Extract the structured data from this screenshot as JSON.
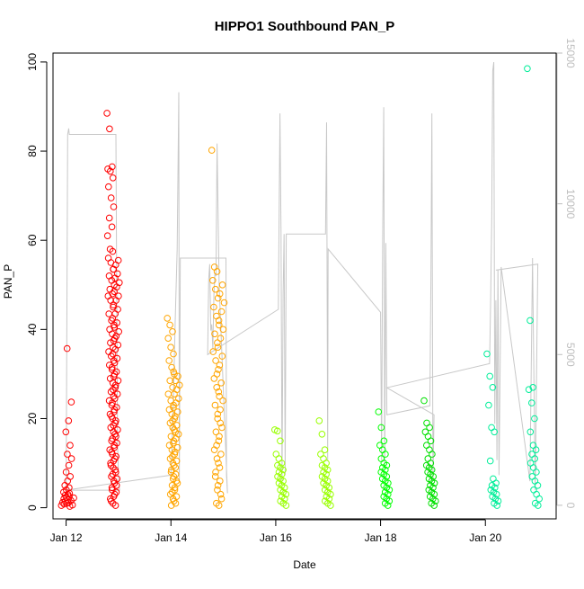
{
  "chart_data": {
    "type": "scatter",
    "title": "HIPPO1 Southbound PAN_P",
    "xlabel": "Date",
    "ylabel": "PAN_P",
    "x_ticks": [
      "Jan 12",
      "Jan 14",
      "Jan 16",
      "Jan 18",
      "Jan 20"
    ],
    "y_ticks": [
      "0",
      "20",
      "40",
      "60",
      "80",
      "100"
    ],
    "y2_ticks": [
      "0",
      "5000",
      "10000",
      "15000"
    ],
    "xlim": [
      11.75,
      21.35
    ],
    "ylim": [
      -2.5,
      102
    ],
    "y2lim": [
      -450,
      15000
    ],
    "grid": false,
    "y2_line_color": "#c8c8c8",
    "flights": [
      {
        "day": 12.03,
        "color": "#ff0000",
        "values": [
          0.5,
          0.8,
          1.0,
          1.2,
          1.5,
          1.8,
          2.0,
          2.3,
          2.5,
          2.8,
          3.0,
          3.5,
          4.0,
          4.5,
          5.0,
          6.0,
          7.0,
          8.0,
          9.5,
          11.0,
          12.0,
          14.0,
          17.0,
          19.5,
          23.7,
          35.7,
          0.3,
          0.6,
          1.1,
          1.6,
          2.2,
          3.2
        ]
      },
      {
        "day": 12.9,
        "color": "#ff0000",
        "values": [
          88.5,
          85.0,
          76.5,
          76.0,
          75.5,
          74.0,
          72.0,
          69.5,
          67.5,
          65.0,
          63.0,
          61.0,
          58.0,
          57.5,
          56.0,
          55.0,
          53.5,
          52.0,
          51.0,
          50.0,
          49.0,
          48.0,
          47.5,
          46.5,
          45.0,
          43.5,
          42.0,
          41.0,
          40.0,
          39.0,
          38.0,
          37.0,
          36.0,
          35.0,
          34.0,
          33.0,
          32.0,
          31.0,
          30.0,
          29.0,
          28.0,
          27.0,
          26.0,
          25.0,
          24.0,
          23.0,
          22.0,
          21.0,
          20.0,
          19.0,
          18.0,
          17.0,
          16.0,
          15.0,
          14.0,
          13.0,
          12.0,
          11.0,
          10.0,
          9.0,
          8.0,
          7.0,
          6.0,
          5.0,
          4.0,
          3.0,
          2.0,
          1.0,
          0.5,
          1.5,
          2.5,
          3.5,
          4.5,
          5.5,
          6.5,
          7.5,
          8.5,
          9.5,
          10.5,
          11.5,
          12.5,
          13.5,
          14.5,
          15.5,
          16.5,
          17.5,
          18.5,
          19.5,
          20.5,
          21.5,
          22.5,
          23.5,
          24.5,
          25.5,
          26.5,
          27.5,
          28.5,
          29.5,
          30.5,
          31.5,
          32.5,
          33.5,
          34.5,
          35.5,
          36.5,
          37.5,
          38.5,
          39.5,
          40.5,
          41.5,
          42.5,
          43.5,
          44.5,
          45.5,
          46.5,
          47.5,
          48.5,
          49.5,
          50.5,
          51.5,
          52.5,
          53.5,
          54.5,
          55.5
        ]
      },
      {
        "day": 14.05,
        "color": "#ffa500",
        "values": [
          42.5,
          41.0,
          39.5,
          38.0,
          36.0,
          34.5,
          33.0,
          31.5,
          30.0,
          28.5,
          27.0,
          25.5,
          24.0,
          23.0,
          22.0,
          21.0,
          20.0,
          19.0,
          18.0,
          17.0,
          16.0,
          15.0,
          14.0,
          13.0,
          12.0,
          11.0,
          10.0,
          9.0,
          8.0,
          7.0,
          6.0,
          5.0,
          4.0,
          3.0,
          2.0,
          1.0,
          0.5,
          1.5,
          2.5,
          3.5,
          4.5,
          5.5,
          6.5,
          7.5,
          8.5,
          9.5,
          10.5,
          11.5,
          12.5,
          13.5,
          14.5,
          15.5,
          16.5,
          17.5,
          18.5,
          19.5,
          20.5,
          21.5,
          22.5,
          23.5,
          24.5,
          25.5,
          26.5,
          27.5,
          28.5,
          29.5,
          30.5
        ]
      },
      {
        "day": 14.9,
        "color": "#ffa500",
        "values": [
          80.2,
          54.0,
          53.0,
          51.0,
          49.0,
          47.0,
          45.0,
          43.0,
          41.0,
          39.0,
          37.0,
          35.0,
          33.0,
          31.0,
          29.0,
          27.0,
          25.0,
          23.0,
          21.0,
          19.0,
          17.0,
          15.0,
          13.0,
          11.0,
          9.0,
          7.0,
          5.0,
          3.0,
          1.0,
          0.5,
          2.0,
          4.0,
          6.0,
          8.0,
          10.0,
          12.0,
          14.0,
          16.0,
          18.0,
          20.0,
          22.0,
          24.0,
          26.0,
          28.0,
          30.0,
          32.0,
          34.0,
          36.0,
          38.0,
          40.0,
          42.0,
          44.0,
          46.0,
          48.0,
          50.0
        ]
      },
      {
        "day": 16.1,
        "color": "#99ff00",
        "values": [
          17.5,
          17.2,
          15.0,
          12.0,
          11.0,
          10.0,
          9.5,
          9.0,
          8.5,
          8.0,
          7.5,
          7.0,
          6.5,
          6.0,
          5.5,
          5.0,
          4.5,
          4.0,
          3.5,
          3.0,
          2.5,
          2.0,
          1.5,
          1.0,
          0.5
        ]
      },
      {
        "day": 16.95,
        "color": "#99ff00",
        "values": [
          19.5,
          16.5,
          13.0,
          12.0,
          11.0,
          10.0,
          9.5,
          9.0,
          8.5,
          8.0,
          7.5,
          7.0,
          6.5,
          6.0,
          5.5,
          5.0,
          4.5,
          4.0,
          3.5,
          3.0,
          2.5,
          2.0,
          1.5,
          1.0,
          0.5
        ]
      },
      {
        "day": 18.08,
        "color": "#00ff00",
        "values": [
          21.5,
          18.0,
          15.0,
          14.0,
          13.0,
          12.0,
          11.0,
          10.0,
          9.5,
          9.0,
          8.5,
          8.0,
          7.5,
          7.0,
          6.5,
          6.0,
          5.5,
          5.0,
          4.5,
          4.0,
          3.5,
          3.0,
          2.5,
          2.0,
          1.5,
          1.0,
          0.5
        ]
      },
      {
        "day": 18.95,
        "color": "#00e000",
        "values": [
          24.0,
          19.0,
          18.0,
          17.0,
          16.0,
          15.0,
          14.0,
          13.0,
          12.0,
          11.0,
          10.0,
          9.5,
          9.0,
          8.5,
          8.0,
          7.5,
          7.0,
          6.5,
          6.0,
          5.5,
          5.0,
          4.5,
          4.0,
          3.5,
          3.0,
          2.5,
          2.0,
          1.5,
          1.0,
          0.5
        ]
      },
      {
        "day": 20.15,
        "color": "#00ee99",
        "values": [
          34.5,
          29.5,
          27.0,
          23.0,
          18.0,
          17.0,
          10.5,
          6.5,
          5.5,
          5.0,
          4.5,
          4.0,
          3.5,
          3.0,
          2.5,
          2.0,
          1.5,
          1.0,
          0.5
        ]
      },
      {
        "day": 20.92,
        "color": "#00ee99",
        "values": [
          98.5,
          42.0,
          27.0,
          26.5,
          23.5,
          20.0,
          17.0,
          14.0,
          13.0,
          12.0,
          11.0,
          10.0,
          9.0,
          8.0,
          7.0,
          6.0,
          5.0,
          4.0,
          3.0,
          2.0,
          1.0,
          0.5
        ]
      }
    ],
    "altitude_series": {
      "x": [
        12.0,
        12.03,
        12.05,
        12.06,
        12.08,
        12.1,
        12.95,
        12.98,
        13.0,
        13.02,
        11.99,
        14.0,
        14.04,
        14.08,
        14.12,
        14.15,
        14.16,
        14.18,
        14.2,
        15.05,
        15.06,
        15.08,
        14.92,
        14.88,
        14.86,
        14.84,
        14.82,
        14.8,
        14.78,
        14.76,
        14.74,
        14.72,
        14.7,
        16.05,
        16.08,
        16.1,
        16.12,
        16.14,
        16.16,
        16.18,
        16.2,
        16.92,
        16.95,
        16.97,
        16.99,
        17.0,
        18.0,
        18.02,
        18.04,
        18.06,
        18.08,
        18.1,
        18.12,
        18.94,
        18.96,
        18.98,
        19.0,
        19.02,
        18.12,
        20.08,
        20.1,
        20.12,
        20.14,
        20.16,
        20.18,
        20.2,
        20.22,
        20.24,
        20.26,
        20.3,
        20.85,
        20.9,
        20.95,
        21.0,
        20.2
      ],
      "y": [
        300,
        12300,
        12500,
        12300,
        12300,
        12300,
        12300,
        2100,
        900,
        500,
        500,
        1000,
        3000,
        6000,
        8500,
        13700,
        800,
        8200,
        8200,
        8200,
        1000,
        400,
        7300,
        12000,
        7600,
        7700,
        7000,
        5200,
        6000,
        5800,
        8000,
        7500,
        5000,
        6500,
        13000,
        9000,
        800,
        7000,
        9000,
        1000,
        9000,
        9000,
        9000,
        12700,
        1500,
        8500,
        6400,
        1500,
        8800,
        13200,
        1200,
        8700,
        3000,
        3300,
        7400,
        13000,
        800,
        3000,
        3900,
        4700,
        6800,
        9500,
        14400,
        14700,
        2700,
        6800,
        1500,
        7800,
        1000,
        7900,
        800,
        8200,
        500,
        8000,
        7800
      ]
    }
  }
}
